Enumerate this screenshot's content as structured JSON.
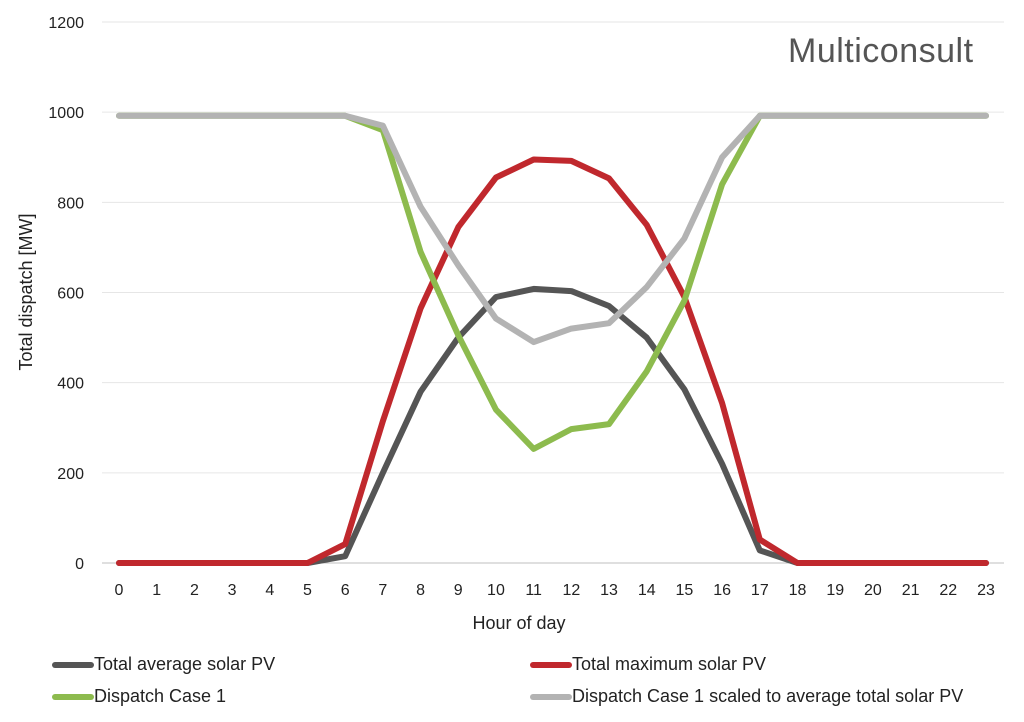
{
  "chart_data": {
    "type": "line",
    "xlabel": "Hour of day",
    "ylabel": "Total dispatch [MW]",
    "ylim": [
      0,
      1200
    ],
    "yticks": [
      0,
      200,
      400,
      600,
      800,
      1000,
      1200
    ],
    "x": [
      0,
      1,
      2,
      3,
      4,
      5,
      6,
      7,
      8,
      9,
      10,
      11,
      12,
      13,
      14,
      15,
      16,
      17,
      18,
      19,
      20,
      21,
      22,
      23
    ],
    "grid": true,
    "legend_position": "bottom",
    "series": [
      {
        "name": "Total average solar PV",
        "color": "#555555",
        "values": [
          0,
          0,
          0,
          0,
          0,
          0,
          15,
          200,
          380,
          500,
          590,
          608,
          603,
          570,
          500,
          385,
          220,
          28,
          0,
          0,
          0,
          0,
          0,
          0
        ]
      },
      {
        "name": "Total maximum solar PV",
        "color": "#c0282d",
        "values": [
          0,
          0,
          0,
          0,
          0,
          0,
          42,
          315,
          565,
          745,
          855,
          895,
          892,
          853,
          750,
          590,
          355,
          52,
          0,
          0,
          0,
          0,
          0,
          0
        ]
      },
      {
        "name": "Dispatch Case 1",
        "color": "#8dbb4e",
        "values": [
          992,
          992,
          992,
          992,
          992,
          992,
          992,
          960,
          690,
          505,
          340,
          253,
          297,
          308,
          425,
          582,
          840,
          992,
          992,
          992,
          992,
          992,
          992,
          992
        ]
      },
      {
        "name": "Dispatch Case 1 scaled to average total solar PV",
        "color": "#b3b3b3",
        "values": [
          992,
          992,
          992,
          992,
          992,
          992,
          992,
          970,
          790,
          660,
          542,
          490,
          520,
          532,
          612,
          720,
          900,
          992,
          992,
          992,
          992,
          992,
          992,
          992
        ]
      }
    ]
  },
  "logo": {
    "text": "Multiconsult",
    "accent_color": "#f28c00"
  }
}
